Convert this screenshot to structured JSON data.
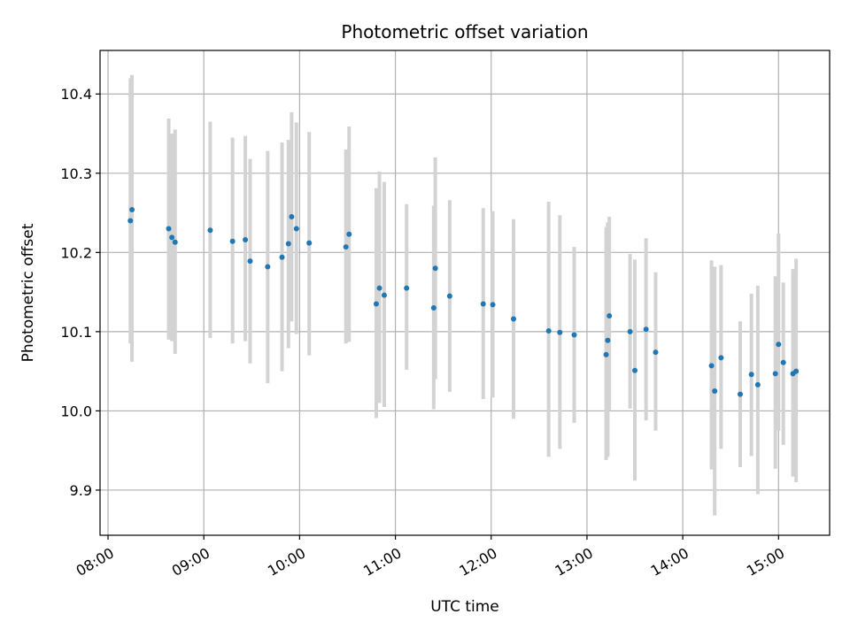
{
  "chart_data": {
    "type": "scatter",
    "title": "Photometric offset variation",
    "xlabel": "UTC time",
    "ylabel": "Photometric offset",
    "xlim": [
      "07:55",
      "15:32"
    ],
    "ylim": [
      9.843,
      10.455
    ],
    "x_ticks": [
      "08:00",
      "09:00",
      "10:00",
      "11:00",
      "12:00",
      "13:00",
      "14:00",
      "15:00"
    ],
    "y_ticks": [
      9.9,
      10.0,
      10.1,
      10.2,
      10.3,
      10.4
    ],
    "y_tick_labels": [
      "9.9",
      "10.0",
      "10.1",
      "10.2",
      "10.3",
      "10.4"
    ],
    "grid": true,
    "colors": {
      "point": "#1f77b4",
      "errorbar": "#d3d3d3",
      "grid": "#b0b0b0",
      "axes": "#000000"
    },
    "series": [
      {
        "x": [
          "08:14",
          "08:15",
          "08:38",
          "08:40",
          "08:42",
          "09:04",
          "09:18",
          "09:26",
          "09:29",
          "09:40",
          "09:49",
          "09:53",
          "09:55",
          "09:58",
          "10:06",
          "10:29",
          "10:31",
          "10:48",
          "10:50",
          "10:53",
          "11:07",
          "11:24",
          "11:25",
          "11:34",
          "11:55",
          "12:01",
          "12:14",
          "12:36",
          "12:43",
          "12:52",
          "13:12",
          "13:13",
          "13:14",
          "13:27",
          "13:30",
          "13:37",
          "13:43",
          "14:18",
          "14:20",
          "14:24",
          "14:36",
          "14:43",
          "14:47",
          "14:58",
          "15:00",
          "15:03",
          "15:09",
          "15:11"
        ],
        "y": [
          10.24,
          10.254,
          10.23,
          10.219,
          10.213,
          10.228,
          10.214,
          10.216,
          10.189,
          10.182,
          10.194,
          10.211,
          10.245,
          10.23,
          10.212,
          10.207,
          10.223,
          10.135,
          10.155,
          10.146,
          10.155,
          10.13,
          10.18,
          10.145,
          10.135,
          10.134,
          10.116,
          10.101,
          10.099,
          10.096,
          10.071,
          10.089,
          10.12,
          10.1,
          10.051,
          10.103,
          10.074,
          10.057,
          10.025,
          10.067,
          10.021,
          10.046,
          10.033,
          10.047,
          10.084,
          10.061,
          10.047,
          10.05
        ],
        "y_low": [
          10.085,
          10.062,
          10.09,
          10.088,
          10.072,
          10.092,
          10.085,
          10.088,
          10.06,
          10.035,
          10.05,
          10.079,
          10.113,
          10.097,
          10.07,
          10.085,
          10.087,
          9.991,
          10.01,
          10.005,
          10.052,
          10.002,
          10.04,
          10.024,
          10.015,
          10.017,
          9.99,
          9.942,
          9.952,
          9.985,
          9.938,
          9.942,
          10.0,
          10.003,
          9.912,
          9.988,
          9.975,
          9.926,
          9.868,
          9.952,
          9.929,
          9.943,
          9.895,
          9.927,
          9.975,
          9.957,
          9.917,
          9.91
        ],
        "y_high": [
          10.42,
          10.424,
          10.369,
          10.35,
          10.355,
          10.365,
          10.345,
          10.347,
          10.318,
          10.328,
          10.339,
          10.342,
          10.377,
          10.364,
          10.352,
          10.33,
          10.359,
          10.281,
          10.302,
          10.289,
          10.261,
          10.259,
          10.32,
          10.266,
          10.256,
          10.252,
          10.242,
          10.264,
          10.247,
          10.207,
          10.232,
          10.238,
          10.245,
          10.198,
          10.191,
          10.218,
          10.175,
          10.19,
          10.182,
          10.184,
          10.113,
          10.148,
          10.158,
          10.17,
          10.224,
          10.162,
          10.179,
          10.192
        ]
      }
    ]
  }
}
